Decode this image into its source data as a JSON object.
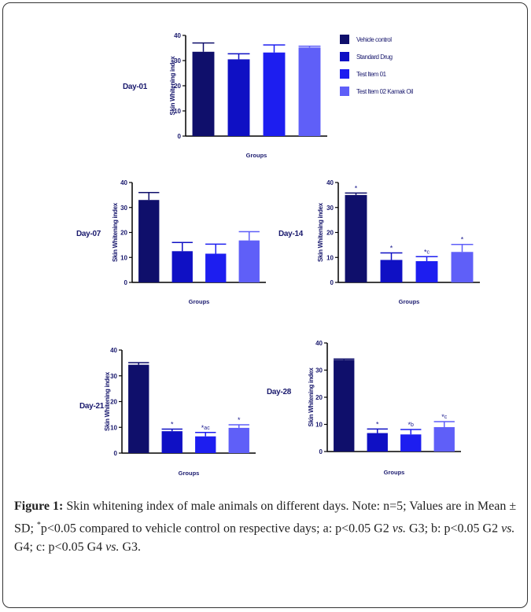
{
  "colors": {
    "vehicle": "#0f0f6b",
    "standard": "#0f10c4",
    "test01": "#1d1ef0",
    "test02": "#5f5ff8",
    "axis": "#000000"
  },
  "legend": [
    {
      "label": "Vehicle control",
      "color": "#0f0f6b"
    },
    {
      "label": "Standard Drug",
      "color": "#0f10c4"
    },
    {
      "label": "Test Item 01",
      "color": "#1d1ef0"
    },
    {
      "label": "Test Item 02 Kamak Oil",
      "color": "#5f5ff8"
    }
  ],
  "chart_data": [
    {
      "type": "bar",
      "title": "Day-01",
      "ylabel": "Skin Whitening index",
      "xlabel": "Groups",
      "ylim": [
        0,
        40
      ],
      "yticks": [
        0,
        10,
        20,
        30,
        40
      ],
      "values": [
        33.5,
        30.5,
        33.2,
        35.2
      ],
      "errors": [
        3.5,
        2.2,
        3.0,
        0.5
      ],
      "annotations": [
        "",
        "",
        "",
        ""
      ]
    },
    {
      "type": "bar",
      "title": "Day-07",
      "ylabel": "Skin Whitening index",
      "xlabel": "Groups",
      "ylim": [
        0,
        40
      ],
      "yticks": [
        0,
        10,
        20,
        30,
        40
      ],
      "values": [
        33.0,
        12.5,
        11.5,
        16.8
      ],
      "errors": [
        3.0,
        3.5,
        3.8,
        3.5
      ],
      "annotations": [
        "",
        "",
        "",
        ""
      ]
    },
    {
      "type": "bar",
      "title": "Day-14",
      "ylabel": "Skin Whitening index",
      "xlabel": "Groups",
      "ylim": [
        0,
        40
      ],
      "yticks": [
        0,
        10,
        20,
        30,
        40
      ],
      "values": [
        35.0,
        9.0,
        8.5,
        12.2
      ],
      "errors": [
        0.8,
        2.8,
        1.8,
        3.0
      ],
      "annotations": [
        "*",
        "*",
        "*c",
        "*"
      ]
    },
    {
      "type": "bar",
      "title": "Day-21",
      "ylabel": "Skin Whitening index",
      "xlabel": "Groups",
      "ylim": [
        0,
        40
      ],
      "yticks": [
        0,
        10,
        20,
        30,
        40
      ],
      "values": [
        34.3,
        8.5,
        6.5,
        9.8
      ],
      "errors": [
        0.8,
        0.8,
        1.5,
        1.2
      ],
      "annotations": [
        "",
        "*",
        "*ac",
        "*"
      ]
    },
    {
      "type": "bar",
      "title": "Day-28",
      "ylabel": "Skin Whitening index",
      "xlabel": "Groups",
      "ylim": [
        0,
        40
      ],
      "yticks": [
        0,
        10,
        20,
        30,
        40
      ],
      "values": [
        33.8,
        6.8,
        6.3,
        9.0
      ],
      "errors": [
        0.3,
        1.5,
        1.8,
        2.0
      ],
      "annotations": [
        "",
        "*",
        "*b",
        "*c"
      ]
    }
  ],
  "caption": {
    "figure_label": "Figure 1:",
    "text_1": " Skin whitening index of male animals on different days. Note: n=5; Values are in Mean ± SD; ",
    "superscript": "*",
    "text_2": "p<0.05 compared to vehicle control on respective days; a: p<0.05 G2 ",
    "vs1": "vs.",
    "text_3": " G3; b: p<0.05 G2 ",
    "vs2": "vs.",
    "text_4": " G4; c: p<0.05 G4 ",
    "vs3": "vs.",
    "text_5": " G3."
  }
}
